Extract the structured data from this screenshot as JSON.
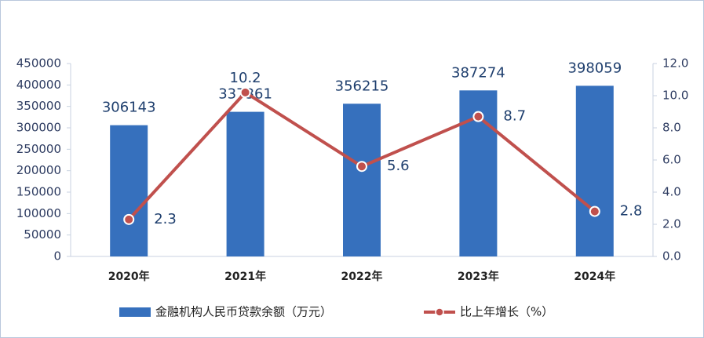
{
  "chart_data": {
    "type": "bar",
    "categories": [
      "2020年",
      "2021年",
      "2022年",
      "2023年",
      "2024年"
    ],
    "series": [
      {
        "name": "金融机构人民币贷款余额（万元）",
        "type": "bar",
        "color": "#3670bd",
        "values": [
          306143,
          337361,
          356215,
          387274,
          398059
        ]
      },
      {
        "name": "比上年增长（%）",
        "type": "line",
        "axis": "y2",
        "color": "#c0504d",
        "values": [
          2.3,
          10.2,
          5.6,
          8.7,
          2.8
        ]
      }
    ],
    "ylim": [
      0,
      450000
    ],
    "yticks": [
      0,
      50000,
      100000,
      150000,
      200000,
      250000,
      300000,
      350000,
      400000,
      450000
    ],
    "y2lim": [
      0,
      12
    ],
    "y2ticks": [
      {
        "value": 0,
        "label": "0.0"
      },
      {
        "value": 2,
        "label": "2.0"
      },
      {
        "value": 4,
        "label": "4.0"
      },
      {
        "value": 6,
        "label": "6.0"
      },
      {
        "value": 8,
        "label": "8.0"
      },
      {
        "value": 10,
        "label": "10.0"
      },
      {
        "value": 12,
        "label": "12.0"
      }
    ],
    "legend": "bottom"
  }
}
